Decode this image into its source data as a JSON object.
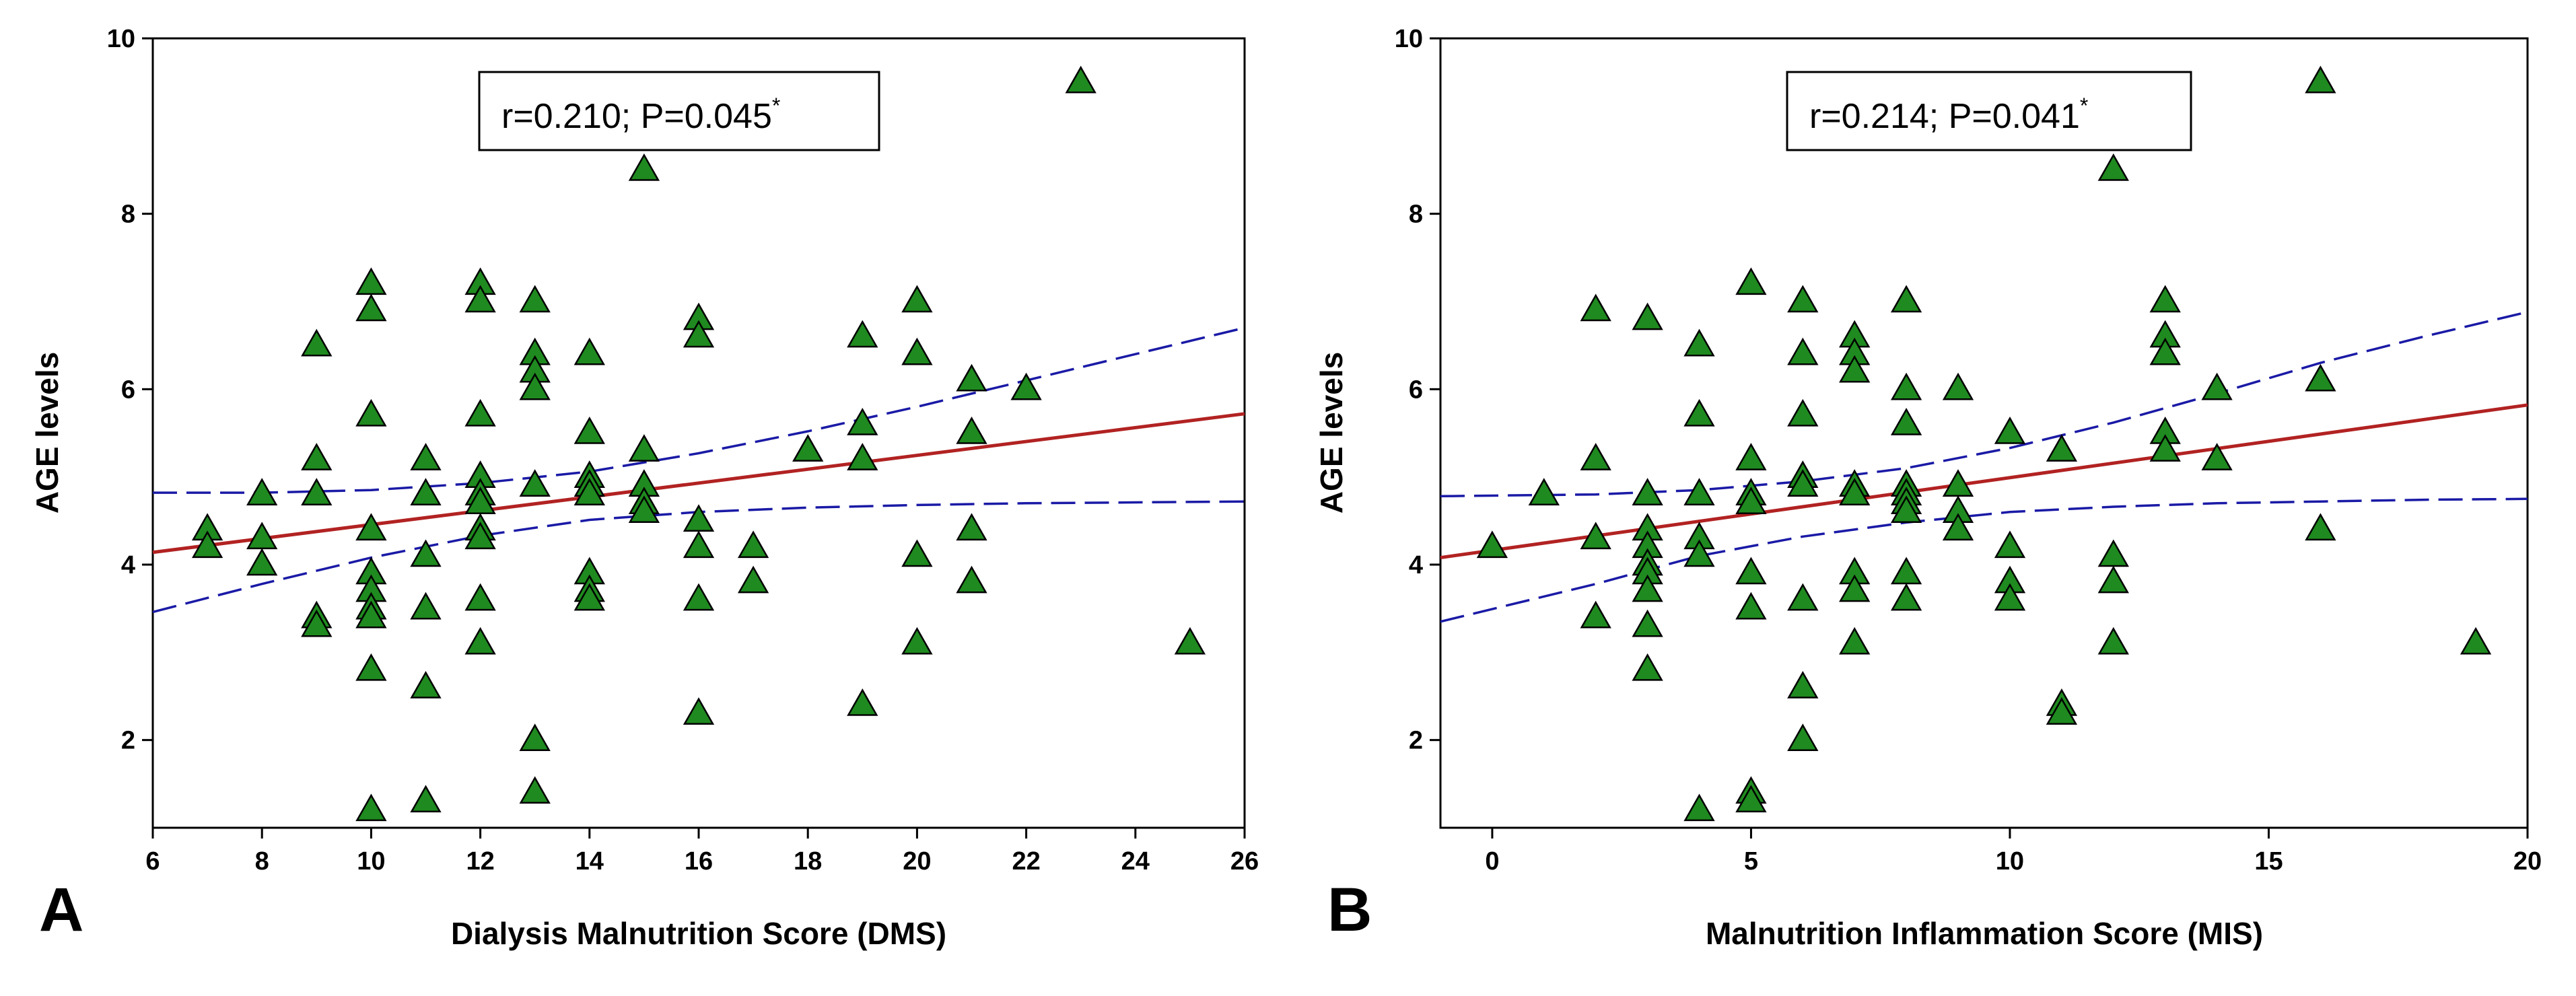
{
  "chart_data": [
    {
      "type": "scatter",
      "panel_label": "A",
      "xlabel": "Dialysis Malnutrition Score (DMS)",
      "ylabel": "AGE levels",
      "xlim": [
        6,
        26
      ],
      "ylim": [
        1,
        10
      ],
      "xticks": [
        "6",
        "8",
        "10",
        "12",
        "14",
        "16",
        "18",
        "20",
        "22",
        "24",
        "26"
      ],
      "yticks": [
        "2",
        "4",
        "6",
        "8",
        "10"
      ],
      "annotation": {
        "text": "r=0.210; P=0.045",
        "sup": "*"
      },
      "marker": {
        "shape": "triangle",
        "color": "#1f8a1f"
      },
      "fit_line": {
        "start": [
          6,
          4.14
        ],
        "end": [
          26,
          5.72
        ],
        "color": "#b22222"
      },
      "ci_upper": [
        [
          6,
          4.82
        ],
        [
          8,
          4.82
        ],
        [
          10,
          4.85
        ],
        [
          12,
          4.93
        ],
        [
          14,
          5.06
        ],
        [
          16,
          5.27
        ],
        [
          18,
          5.52
        ],
        [
          20,
          5.8
        ],
        [
          22,
          6.1
        ],
        [
          24,
          6.4
        ],
        [
          26,
          6.7
        ]
      ],
      "ci_lower": [
        [
          6,
          3.46
        ],
        [
          8,
          3.78
        ],
        [
          10,
          4.08
        ],
        [
          12,
          4.33
        ],
        [
          14,
          4.51
        ],
        [
          16,
          4.6
        ],
        [
          18,
          4.65
        ],
        [
          20,
          4.68
        ],
        [
          22,
          4.7
        ],
        [
          24,
          4.71
        ],
        [
          26,
          4.72
        ]
      ],
      "ci_color": "#1a1aa6",
      "points": [
        [
          7,
          4.4
        ],
        [
          7,
          4.2
        ],
        [
          8,
          4.8
        ],
        [
          8,
          4.3
        ],
        [
          8,
          4.0
        ],
        [
          9,
          6.5
        ],
        [
          9,
          5.2
        ],
        [
          9,
          4.8
        ],
        [
          9,
          3.4
        ],
        [
          9,
          3.3
        ],
        [
          10,
          7.2
        ],
        [
          10,
          6.9
        ],
        [
          10,
          5.7
        ],
        [
          10,
          4.4
        ],
        [
          10,
          3.9
        ],
        [
          10,
          3.7
        ],
        [
          10,
          3.5
        ],
        [
          10,
          3.4
        ],
        [
          10,
          2.8
        ],
        [
          10,
          1.2
        ],
        [
          11,
          5.2
        ],
        [
          11,
          4.8
        ],
        [
          11,
          4.1
        ],
        [
          11,
          3.5
        ],
        [
          11,
          2.6
        ],
        [
          11,
          1.3
        ],
        [
          12,
          7.2
        ],
        [
          12,
          7.0
        ],
        [
          12,
          5.7
        ],
        [
          12,
          5.0
        ],
        [
          12,
          4.8
        ],
        [
          12,
          4.7
        ],
        [
          12,
          4.4
        ],
        [
          12,
          4.3
        ],
        [
          12,
          3.6
        ],
        [
          12,
          3.1
        ],
        [
          13,
          7.0
        ],
        [
          13,
          6.4
        ],
        [
          13,
          6.2
        ],
        [
          13,
          6.0
        ],
        [
          13,
          4.9
        ],
        [
          13,
          2.0
        ],
        [
          13,
          1.4
        ],
        [
          14,
          6.4
        ],
        [
          14,
          5.5
        ],
        [
          14,
          5.0
        ],
        [
          14,
          4.9
        ],
        [
          14,
          4.8
        ],
        [
          14,
          3.9
        ],
        [
          14,
          3.7
        ],
        [
          14,
          3.6
        ],
        [
          15,
          8.5
        ],
        [
          15,
          5.3
        ],
        [
          15,
          4.9
        ],
        [
          15,
          4.7
        ],
        [
          15,
          4.6
        ],
        [
          16,
          6.8
        ],
        [
          16,
          6.6
        ],
        [
          16,
          4.5
        ],
        [
          16,
          4.2
        ],
        [
          16,
          3.6
        ],
        [
          16,
          2.3
        ],
        [
          17,
          4.2
        ],
        [
          17,
          3.8
        ],
        [
          18,
          5.3
        ],
        [
          19,
          6.6
        ],
        [
          19,
          5.6
        ],
        [
          19,
          5.2
        ],
        [
          19,
          2.4
        ],
        [
          20,
          7.0
        ],
        [
          20,
          6.4
        ],
        [
          20,
          4.1
        ],
        [
          20,
          3.1
        ],
        [
          21,
          6.1
        ],
        [
          21,
          5.5
        ],
        [
          21,
          4.4
        ],
        [
          21,
          3.8
        ],
        [
          22,
          6.0
        ],
        [
          23,
          9.5
        ],
        [
          25,
          3.1
        ]
      ]
    },
    {
      "type": "scatter",
      "panel_label": "B",
      "xlabel": "Malnutrition Inflammation Score (MIS)",
      "ylabel": "AGE levels",
      "xlim": [
        -1,
        20
      ],
      "ylim": [
        1,
        10
      ],
      "xticks": [
        "0",
        "5",
        "10",
        "15",
        "20"
      ],
      "yticks": [
        "2",
        "4",
        "6",
        "8",
        "10"
      ],
      "annotation": {
        "text": "r=0.214; P=0.041",
        "sup": "*"
      },
      "marker": {
        "shape": "triangle",
        "color": "#1f8a1f"
      },
      "fit_line": {
        "start": [
          -1,
          4.08
        ],
        "end": [
          20,
          5.82
        ],
        "color": "#b22222"
      },
      "ci_upper": [
        [
          -1,
          4.78
        ],
        [
          2,
          4.8
        ],
        [
          4,
          4.85
        ],
        [
          6,
          4.95
        ],
        [
          8,
          5.1
        ],
        [
          10,
          5.33
        ],
        [
          12,
          5.62
        ],
        [
          14,
          5.95
        ],
        [
          16,
          6.3
        ],
        [
          18,
          6.6
        ],
        [
          20,
          6.88
        ]
      ],
      "ci_lower": [
        [
          -1,
          3.35
        ],
        [
          2,
          3.78
        ],
        [
          4,
          4.1
        ],
        [
          6,
          4.32
        ],
        [
          8,
          4.48
        ],
        [
          10,
          4.6
        ],
        [
          12,
          4.66
        ],
        [
          14,
          4.7
        ],
        [
          16,
          4.72
        ],
        [
          18,
          4.74
        ],
        [
          20,
          4.75
        ]
      ],
      "ci_color": "#1a1aa6",
      "points": [
        [
          0,
          4.2
        ],
        [
          1,
          4.8
        ],
        [
          2,
          6.9
        ],
        [
          2,
          5.2
        ],
        [
          2,
          4.3
        ],
        [
          2,
          3.4
        ],
        [
          3,
          6.8
        ],
        [
          3,
          4.8
        ],
        [
          3,
          4.4
        ],
        [
          3,
          4.2
        ],
        [
          3,
          4.0
        ],
        [
          3,
          3.9
        ],
        [
          3,
          3.7
        ],
        [
          3,
          3.3
        ],
        [
          3,
          2.8
        ],
        [
          4,
          6.5
        ],
        [
          4,
          5.7
        ],
        [
          4,
          4.8
        ],
        [
          4,
          4.3
        ],
        [
          4,
          4.1
        ],
        [
          4,
          1.2
        ],
        [
          5,
          7.2
        ],
        [
          5,
          5.2
        ],
        [
          5,
          4.8
        ],
        [
          5,
          4.7
        ],
        [
          5,
          3.9
        ],
        [
          5,
          3.5
        ],
        [
          5,
          1.4
        ],
        [
          5,
          1.3
        ],
        [
          6,
          7.0
        ],
        [
          6,
          6.4
        ],
        [
          6,
          5.7
        ],
        [
          6,
          5.0
        ],
        [
          6,
          4.9
        ],
        [
          6,
          3.6
        ],
        [
          6,
          2.6
        ],
        [
          6,
          2.0
        ],
        [
          7,
          6.6
        ],
        [
          7,
          6.4
        ],
        [
          7,
          6.2
        ],
        [
          7,
          4.9
        ],
        [
          7,
          4.8
        ],
        [
          7,
          3.9
        ],
        [
          7,
          3.7
        ],
        [
          7,
          3.1
        ],
        [
          8,
          7.0
        ],
        [
          8,
          6.0
        ],
        [
          8,
          5.6
        ],
        [
          8,
          4.9
        ],
        [
          8,
          4.8
        ],
        [
          8,
          4.7
        ],
        [
          8,
          4.6
        ],
        [
          8,
          3.9
        ],
        [
          8,
          3.6
        ],
        [
          9,
          6.0
        ],
        [
          9,
          4.9
        ],
        [
          9,
          4.6
        ],
        [
          9,
          4.4
        ],
        [
          10,
          5.5
        ],
        [
          10,
          4.2
        ],
        [
          10,
          3.8
        ],
        [
          10,
          3.6
        ],
        [
          11,
          5.3
        ],
        [
          11,
          2.4
        ],
        [
          11,
          2.3
        ],
        [
          12,
          8.5
        ],
        [
          12,
          4.1
        ],
        [
          12,
          3.8
        ],
        [
          12,
          3.1
        ],
        [
          13,
          7.0
        ],
        [
          13,
          6.6
        ],
        [
          13,
          6.4
        ],
        [
          13,
          5.5
        ],
        [
          13,
          5.3
        ],
        [
          14,
          6.0
        ],
        [
          14,
          5.2
        ],
        [
          16,
          9.5
        ],
        [
          16,
          6.1
        ],
        [
          16,
          4.4
        ],
        [
          19,
          3.1
        ]
      ]
    }
  ]
}
